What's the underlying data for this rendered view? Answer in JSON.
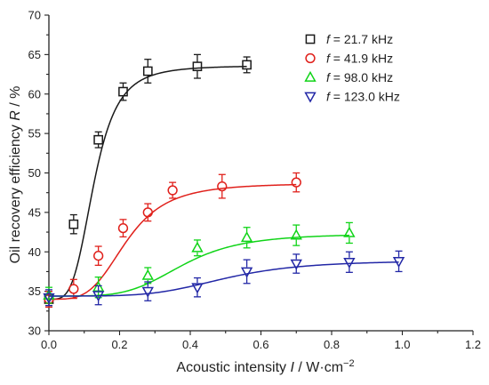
{
  "chart_data": {
    "type": "scatter",
    "title": "",
    "xlabel": "Acoustic intensity I / W·cm⁻²",
    "xlabel_parts": [
      "Acoustic intensity ",
      "I",
      " / W·cm",
      "−2"
    ],
    "ylabel": "Oil recovery efficiency R / %",
    "ylabel_parts": [
      "Oil recovery efficiency ",
      "R",
      " / %"
    ],
    "xlim": [
      0.0,
      1.2
    ],
    "ylim": [
      30,
      70
    ],
    "xticks": [
      "0.0",
      "0.2",
      "0.4",
      "0.6",
      "0.8",
      "1.0",
      "1.2"
    ],
    "yticks": [
      "30",
      "35",
      "40",
      "45",
      "50",
      "55",
      "60",
      "65",
      "70"
    ],
    "grid": false,
    "legend_position": "top-right",
    "series": [
      {
        "name": "f = 21.7 kHz",
        "label_var": "f",
        "label_rest": " = 21.7 kHz",
        "color": "#1a1a1a",
        "marker": "square",
        "x": [
          0.0,
          0.07,
          0.14,
          0.21,
          0.28,
          0.42,
          0.56
        ],
        "y": [
          34.0,
          43.5,
          54.2,
          60.3,
          62.9,
          63.5,
          63.7
        ],
        "err": [
          1.0,
          1.2,
          1.0,
          1.1,
          1.5,
          1.5,
          1.0
        ],
        "fit": {
          "A1": 34.0,
          "A2": 63.6,
          "x0": 0.128,
          "p": 3.8
        }
      },
      {
        "name": "f = 41.9 kHz",
        "label_var": "f",
        "label_rest": " = 41.9 kHz",
        "color": "#e0201b",
        "marker": "circle",
        "x": [
          0.0,
          0.07,
          0.14,
          0.21,
          0.28,
          0.35,
          0.49,
          0.7
        ],
        "y": [
          34.0,
          35.3,
          39.5,
          43.0,
          45.0,
          47.8,
          48.3,
          48.8
        ],
        "err": [
          1.0,
          1.2,
          1.2,
          1.1,
          1.1,
          1.0,
          1.5,
          1.2
        ],
        "fit": {
          "A1": 34.0,
          "A2": 48.7,
          "x0": 0.22,
          "p": 3.8
        }
      },
      {
        "name": "f = 98.0 kHz",
        "label_var": "f",
        "label_rest": " = 98.0 kHz",
        "color": "#10d418",
        "marker": "triangle-up",
        "x": [
          0.0,
          0.14,
          0.28,
          0.42,
          0.56,
          0.7,
          0.85
        ],
        "y": [
          34.5,
          35.5,
          37.0,
          40.5,
          41.8,
          42.1,
          42.4
        ],
        "err": [
          1.0,
          1.3,
          1.0,
          1.0,
          1.3,
          1.3,
          1.3
        ],
        "fit": {
          "A1": 34.4,
          "A2": 42.3,
          "x0": 0.38,
          "p": 4.5
        }
      },
      {
        "name": "f = 123.0 kHz",
        "label_var": "f",
        "label_rest": " = 123.0 kHz",
        "color": "#2227a6",
        "marker": "triangle-down",
        "x": [
          0.0,
          0.14,
          0.28,
          0.42,
          0.56,
          0.7,
          0.85,
          0.99
        ],
        "y": [
          34.2,
          34.5,
          35.0,
          35.5,
          37.5,
          38.5,
          38.7,
          38.8
        ],
        "err": [
          1.0,
          1.2,
          1.2,
          1.2,
          1.5,
          1.2,
          1.3,
          1.3
        ],
        "fit": {
          "A1": 34.4,
          "A2": 38.9,
          "x0": 0.5,
          "p": 4.5
        }
      }
    ]
  }
}
